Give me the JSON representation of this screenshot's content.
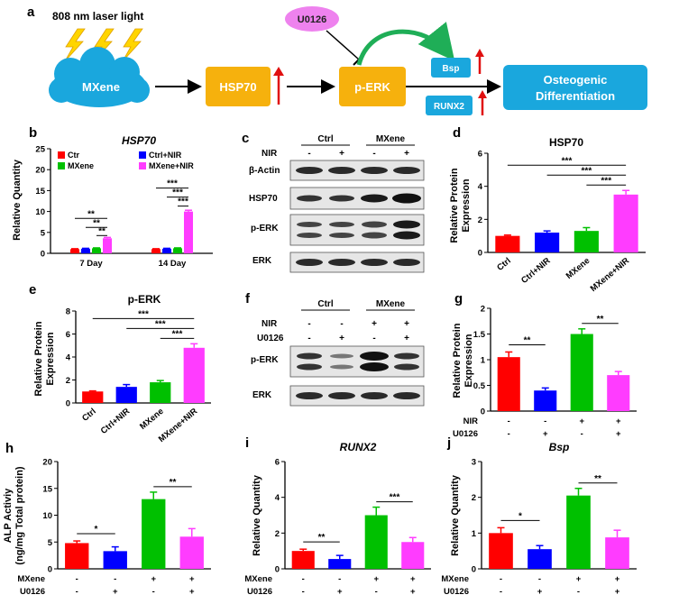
{
  "schematic": {
    "panel_label": "a",
    "laser_label": "808 nm laser light",
    "nodes": {
      "mxene": "MXene",
      "hsp70": "HSP70",
      "perk": "p-ERK",
      "u0126": "U0126",
      "bsp": "Bsp",
      "runx2": "RUNX2",
      "osteo_line1": "Osteogenic",
      "osteo_line2": "Differentiation"
    },
    "colors": {
      "mxene": "#1aa7dd",
      "hsp70": "#f6b10d",
      "u0126": "#ee82ee",
      "arrow_up": "#e01010",
      "curve": "#1fae57"
    }
  },
  "series_colors": {
    "red": "#ff0000",
    "blue": "#0000ff",
    "green": "#00c000",
    "magenta": "#ff3cff"
  },
  "chart_data": [
    {
      "id": "b",
      "panel_label": "b",
      "type": "bar",
      "title": "HSP70",
      "ylabel": "Relative Quantity",
      "ylim": [
        0,
        25
      ],
      "yticks": [
        0,
        5,
        10,
        15,
        20,
        25
      ],
      "categories": [
        "7 Day",
        "14 Day"
      ],
      "series": [
        {
          "name": "Ctr",
          "values": [
            1.0,
            1.0
          ],
          "err": [
            0.1,
            0.1
          ]
        },
        {
          "name": "Ctrl+NIR",
          "values": [
            1.1,
            1.1
          ],
          "err": [
            0.1,
            0.1
          ]
        },
        {
          "name": "MXene",
          "values": [
            1.2,
            1.2
          ],
          "err": [
            0.1,
            0.1
          ]
        },
        {
          "name": "MXene+NIR",
          "values": [
            3.6,
            10.0
          ],
          "err": [
            0.2,
            0.3
          ]
        }
      ],
      "significance": [
        "**",
        "**",
        "**",
        "***",
        "***",
        "***"
      ]
    },
    {
      "id": "d",
      "panel_label": "d",
      "type": "bar",
      "title": "HSP70",
      "ylabel_line1": "Relative Protein",
      "ylabel_line2": "Expression",
      "ylim": [
        0,
        6
      ],
      "yticks": [
        0,
        2,
        4,
        6
      ],
      "categories": [
        "Ctrl",
        "Ctrl+NIR",
        "MXene",
        "MXene+NIR"
      ],
      "values": [
        1.0,
        1.2,
        1.3,
        3.5
      ],
      "err": [
        0.05,
        0.1,
        0.2,
        0.25
      ],
      "significance": [
        "***",
        "***",
        "***"
      ]
    },
    {
      "id": "e",
      "panel_label": "e",
      "type": "bar",
      "title": "p-ERK",
      "ylabel_line1": "Relative Protein",
      "ylabel_line2": "Expression",
      "ylim": [
        0,
        8
      ],
      "yticks": [
        0,
        2,
        4,
        6,
        8
      ],
      "categories": [
        "Ctrl",
        "Ctrl+NIR",
        "MXene",
        "MXene+NIR"
      ],
      "values": [
        1.0,
        1.4,
        1.8,
        4.8
      ],
      "err": [
        0.05,
        0.2,
        0.15,
        0.35
      ],
      "significance": [
        "***",
        "***",
        "***"
      ]
    },
    {
      "id": "g",
      "panel_label": "g",
      "type": "bar",
      "title": "",
      "ylabel_line1": "Relative Protein",
      "ylabel_line2": "Expression",
      "ylim": [
        0,
        2.0
      ],
      "yticks": [
        0.0,
        0.5,
        1.0,
        1.5,
        2.0
      ],
      "values": [
        1.05,
        0.4,
        1.5,
        0.7
      ],
      "err": [
        0.1,
        0.05,
        0.1,
        0.07
      ],
      "conditions": [
        {
          "name": "NIR",
          "signs": [
            "-",
            "-",
            "+",
            "+"
          ]
        },
        {
          "name": "U0126",
          "signs": [
            "-",
            "+",
            "-",
            "+"
          ]
        }
      ],
      "significance": [
        "**",
        "**"
      ]
    },
    {
      "id": "h",
      "panel_label": "h",
      "type": "bar",
      "title": "",
      "ylabel_line1": "ALP Activiy",
      "ylabel_line2": "(ng/mg Total protein)",
      "ylim": [
        0,
        20
      ],
      "yticks": [
        0,
        5,
        10,
        15,
        20
      ],
      "values": [
        4.8,
        3.3,
        13.0,
        6.0
      ],
      "err": [
        0.4,
        0.8,
        1.3,
        1.5
      ],
      "conditions": [
        {
          "name": "MXene",
          "signs": [
            "-",
            "-",
            "+",
            "+"
          ]
        },
        {
          "name": "U0126",
          "signs": [
            "-",
            "+",
            "-",
            "+"
          ]
        }
      ],
      "significance": [
        "*",
        "**"
      ]
    },
    {
      "id": "i",
      "panel_label": "i",
      "type": "bar",
      "title": "RUNX2",
      "ylabel": "Relative Quantity",
      "ylim": [
        0,
        6
      ],
      "yticks": [
        0,
        2,
        4,
        6
      ],
      "values": [
        1.0,
        0.55,
        3.0,
        1.5
      ],
      "err": [
        0.1,
        0.2,
        0.45,
        0.25
      ],
      "conditions": [
        {
          "name": "MXene",
          "signs": [
            "-",
            "-",
            "+",
            "+"
          ]
        },
        {
          "name": "U0126",
          "signs": [
            "-",
            "+",
            "-",
            "+"
          ]
        }
      ],
      "significance": [
        "**",
        "***"
      ]
    },
    {
      "id": "j",
      "panel_label": "j",
      "type": "bar",
      "title": "Bsp",
      "ylabel": "Relative Quantity",
      "ylim": [
        0,
        3
      ],
      "yticks": [
        0,
        1,
        2,
        3
      ],
      "values": [
        1.0,
        0.55,
        2.05,
        0.88
      ],
      "err": [
        0.15,
        0.1,
        0.2,
        0.2
      ],
      "conditions": [
        {
          "name": "MXene",
          "signs": [
            "-",
            "-",
            "+",
            "+"
          ]
        },
        {
          "name": "U0126",
          "signs": [
            "-",
            "+",
            "-",
            "+"
          ]
        }
      ],
      "significance": [
        "*",
        "**"
      ]
    }
  ],
  "blots": {
    "c": {
      "panel_label": "c",
      "groups": [
        "Ctrl",
        "MXene"
      ],
      "nir_label": "NIR",
      "nir_signs": [
        "-",
        "+",
        "-",
        "+"
      ],
      "rows": [
        "β-Actin",
        "HSP70",
        "p-ERK",
        "ERK"
      ]
    },
    "f": {
      "panel_label": "f",
      "groups": [
        "Ctrl",
        "MXene"
      ],
      "conditions": [
        {
          "name": "NIR",
          "signs": [
            "-",
            "-",
            "+",
            "+"
          ]
        },
        {
          "name": "U0126",
          "signs": [
            "-",
            "+",
            "-",
            "+"
          ]
        }
      ],
      "rows": [
        "p-ERK",
        "ERK"
      ]
    }
  }
}
